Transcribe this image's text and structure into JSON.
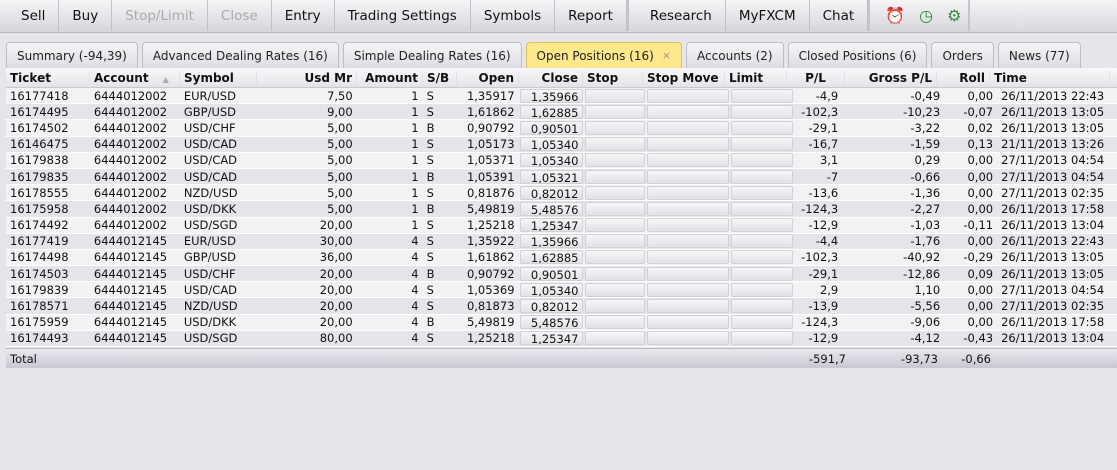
{
  "toolbar": {
    "groups": [
      [
        {
          "label": "Sell",
          "enabled": true
        },
        {
          "label": "Buy",
          "enabled": true
        },
        {
          "label": "Stop/Limit",
          "enabled": false
        },
        {
          "label": "Close",
          "enabled": false
        },
        {
          "label": "Entry",
          "enabled": true
        },
        {
          "label": "Trading Settings",
          "enabled": true
        },
        {
          "label": "Symbols",
          "enabled": true
        },
        {
          "label": "Report",
          "enabled": true
        }
      ],
      [
        {
          "label": "Research",
          "enabled": true
        },
        {
          "label": "MyFXCM",
          "enabled": true
        },
        {
          "label": "Chat",
          "enabled": true
        }
      ]
    ],
    "icons": [
      {
        "name": "alarm-clock-icon",
        "glyph": "⏰",
        "color": "#e8b800"
      },
      {
        "name": "history-clock-icon",
        "glyph": "◷",
        "color": "#2a8a2a"
      },
      {
        "name": "settings-gear-icon",
        "glyph": "⚙",
        "color": "#3a8a3a"
      }
    ]
  },
  "tabs": [
    {
      "label": "Summary (-94,39)"
    },
    {
      "label": "Advanced Dealing Rates (16)"
    },
    {
      "label": "Simple Dealing Rates (16)"
    },
    {
      "label": "Open Positions (16)",
      "active": true,
      "close": "×"
    },
    {
      "label": "Accounts (2)"
    },
    {
      "label": "Closed Positions (6)"
    },
    {
      "label": "Orders"
    },
    {
      "label": "News (77)"
    }
  ],
  "columns": [
    "Ticket",
    "Account",
    "Symbol",
    "Usd Mr",
    "Amount",
    "S/B",
    "Open",
    "Close",
    "Stop",
    "Stop Move",
    "Limit",
    "P/L",
    "Gross P/L",
    "Roll",
    "Time"
  ],
  "sort_indicator": "▲",
  "rows": [
    [
      "16177418",
      "6444012002",
      "EUR/USD",
      "7,50",
      "1",
      "S",
      "1,35917",
      "1,35966",
      "",
      "",
      "",
      "-4,9",
      "-0,49",
      "0,00",
      "26/11/2013 22:43"
    ],
    [
      "16174495",
      "6444012002",
      "GBP/USD",
      "9,00",
      "1",
      "S",
      "1,61862",
      "1,62885",
      "",
      "",
      "",
      "-102,3",
      "-10,23",
      "-0,07",
      "26/11/2013 13:05"
    ],
    [
      "16174502",
      "6444012002",
      "USD/CHF",
      "5,00",
      "1",
      "B",
      "0,90792",
      "0,90501",
      "",
      "",
      "",
      "-29,1",
      "-3,22",
      "0,02",
      "26/11/2013 13:05"
    ],
    [
      "16146475",
      "6444012002",
      "USD/CAD",
      "5,00",
      "1",
      "S",
      "1,05173",
      "1,05340",
      "",
      "",
      "",
      "-16,7",
      "-1,59",
      "0,13",
      "21/11/2013 13:26"
    ],
    [
      "16179838",
      "6444012002",
      "USD/CAD",
      "5,00",
      "1",
      "S",
      "1,05371",
      "1,05340",
      "",
      "",
      "",
      "3,1",
      "0,29",
      "0,00",
      "27/11/2013 04:54"
    ],
    [
      "16179835",
      "6444012002",
      "USD/CAD",
      "5,00",
      "1",
      "B",
      "1,05391",
      "1,05321",
      "",
      "",
      "",
      "-7",
      "-0,66",
      "0,00",
      "27/11/2013 04:54"
    ],
    [
      "16178555",
      "6444012002",
      "NZD/USD",
      "5,00",
      "1",
      "S",
      "0,81876",
      "0,82012",
      "",
      "",
      "",
      "-13,6",
      "-1,36",
      "0,00",
      "27/11/2013 02:35"
    ],
    [
      "16175958",
      "6444012002",
      "USD/DKK",
      "5,00",
      "1",
      "B",
      "5,49819",
      "5,48576",
      "",
      "",
      "",
      "-124,3",
      "-2,27",
      "0,00",
      "26/11/2013 17:58"
    ],
    [
      "16174492",
      "6444012002",
      "USD/SGD",
      "20,00",
      "1",
      "S",
      "1,25218",
      "1,25347",
      "",
      "",
      "",
      "-12,9",
      "-1,03",
      "-0,11",
      "26/11/2013 13:04"
    ],
    [
      "16177419",
      "6444012145",
      "EUR/USD",
      "30,00",
      "4",
      "S",
      "1,35922",
      "1,35966",
      "",
      "",
      "",
      "-4,4",
      "-1,76",
      "0,00",
      "26/11/2013 22:43"
    ],
    [
      "16174498",
      "6444012145",
      "GBP/USD",
      "36,00",
      "4",
      "S",
      "1,61862",
      "1,62885",
      "",
      "",
      "",
      "-102,3",
      "-40,92",
      "-0,29",
      "26/11/2013 13:05"
    ],
    [
      "16174503",
      "6444012145",
      "USD/CHF",
      "20,00",
      "4",
      "B",
      "0,90792",
      "0,90501",
      "",
      "",
      "",
      "-29,1",
      "-12,86",
      "0,09",
      "26/11/2013 13:05"
    ],
    [
      "16179839",
      "6444012145",
      "USD/CAD",
      "20,00",
      "4",
      "S",
      "1,05369",
      "1,05340",
      "",
      "",
      "",
      "2,9",
      "1,10",
      "0,00",
      "27/11/2013 04:54"
    ],
    [
      "16178571",
      "6444012145",
      "NZD/USD",
      "20,00",
      "4",
      "S",
      "0,81873",
      "0,82012",
      "",
      "",
      "",
      "-13,9",
      "-5,56",
      "0,00",
      "27/11/2013 02:35"
    ],
    [
      "16175959",
      "6444012145",
      "USD/DKK",
      "20,00",
      "4",
      "B",
      "5,49819",
      "5,48576",
      "",
      "",
      "",
      "-124,3",
      "-9,06",
      "0,00",
      "26/11/2013 17:58"
    ],
    [
      "16174493",
      "6444012145",
      "USD/SGD",
      "80,00",
      "4",
      "S",
      "1,25218",
      "1,25347",
      "",
      "",
      "",
      "-12,9",
      "-4,12",
      "-0,43",
      "26/11/2013 13:04"
    ]
  ],
  "total": {
    "label": "Total",
    "pl": "-591,7",
    "gross_pl": "-93,73",
    "roll": "-0,66"
  }
}
